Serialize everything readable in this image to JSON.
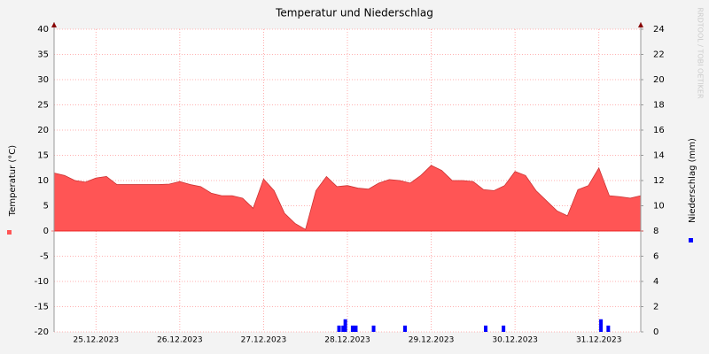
{
  "chart_data": {
    "type": "area",
    "title": "Temperatur und Niederschlag",
    "y_label": "Temperatur (°C)",
    "y2_label": "Niederschlag (mm)",
    "watermark": "RRDTOOL / TOBI OETIKER",
    "x": [
      0,
      1,
      2,
      3,
      4,
      5,
      6,
      7,
      8,
      9,
      10,
      11,
      12,
      13,
      14,
      15,
      16,
      17,
      18,
      19,
      20,
      21,
      22,
      23,
      24,
      25,
      26,
      27,
      28,
      29,
      30,
      31,
      32,
      33,
      34,
      35,
      36,
      37,
      38,
      39,
      40,
      41,
      42,
      43,
      44,
      45,
      46,
      47,
      48,
      49,
      50,
      51,
      52,
      53,
      54,
      55,
      56
    ],
    "xlim": [
      0,
      56
    ],
    "xticks": [
      {
        "value": 4,
        "label": "25.12.2023"
      },
      {
        "value": 12,
        "label": "26.12.2023"
      },
      {
        "value": 20,
        "label": "27.12.2023"
      },
      {
        "value": 28,
        "label": "28.12.2023"
      },
      {
        "value": 36,
        "label": "29.12.2023"
      },
      {
        "value": 44,
        "label": "30.12.2023"
      },
      {
        "value": 52,
        "label": "31.12.2023"
      }
    ],
    "ylim": [
      -20,
      40
    ],
    "yticks": [
      -20,
      -15,
      -10,
      -5,
      0,
      5,
      10,
      15,
      20,
      25,
      30,
      35,
      40
    ],
    "y2lim": [
      0,
      24
    ],
    "y2ticks": [
      0,
      2,
      4,
      6,
      8,
      10,
      12,
      14,
      16,
      18,
      20,
      22,
      24
    ],
    "grid": true,
    "series": [
      {
        "color": "#ff5555",
        "values": [
          11.5,
          11,
          10,
          9.7,
          10.5,
          10.8,
          9.2,
          9.2,
          9.2,
          9.2,
          9.2,
          9.3,
          9.8,
          9.2,
          8.8,
          7.5,
          7,
          7,
          6.5,
          4.5,
          10.3,
          8,
          3.5,
          1.5,
          0.3,
          8,
          10.8,
          8.8,
          9,
          8.5,
          8.3,
          9.5,
          10.2,
          10,
          9.5,
          11,
          13,
          12,
          10,
          10,
          9.8,
          8.2,
          8,
          9,
          11.8,
          11,
          8,
          6,
          4,
          3,
          8.2,
          9,
          12.5,
          7,
          6.8,
          6.5,
          7
        ]
      },
      {
        "type": "bar",
        "axis": "y2",
        "color": "#0000ff",
        "x": [
          27.2,
          27.6,
          27.8,
          28.5,
          28.8,
          30.5,
          33.5,
          41.2,
          42.9,
          52.2,
          52.9
        ],
        "values": [
          0.5,
          0.5,
          1,
          0.5,
          0.5,
          0.5,
          0.5,
          0.5,
          0.5,
          1,
          0.5
        ]
      }
    ]
  }
}
